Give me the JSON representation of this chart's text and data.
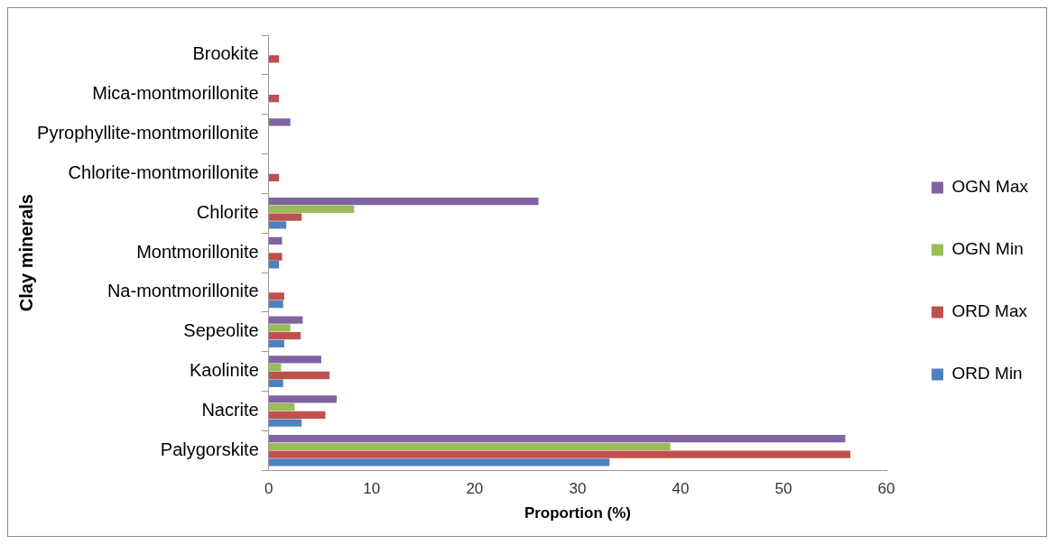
{
  "chart_data": {
    "type": "bar",
    "orientation": "horizontal",
    "xlabel": "Proportion (%)",
    "ylabel": "Clay minerals",
    "categories": [
      "Brookite",
      "Mica-montmorillonite",
      "Pyrophyllite-montmorillonite",
      "Chlorite-montmorillonite",
      "Chlorite",
      "Montmorillonite",
      "Na-montmorillonite",
      "Sepeolite",
      "Kaolinite",
      "Nacrite",
      "Palygorskite"
    ],
    "series": [
      {
        "name": "OGN Max",
        "color": "#8064a2",
        "values": [
          null,
          null,
          2.1,
          null,
          26.2,
          1.3,
          null,
          3.3,
          5.1,
          6.6,
          56.0
        ]
      },
      {
        "name": "OGN Min",
        "color": "#9bbb59",
        "values": [
          null,
          null,
          null,
          null,
          8.3,
          null,
          null,
          2.1,
          1.2,
          2.5,
          39.0
        ]
      },
      {
        "name": "ORD Max",
        "color": "#c0504d",
        "values": [
          1.0,
          1.0,
          null,
          1.0,
          3.2,
          1.3,
          1.5,
          3.1,
          5.9,
          5.5,
          56.5
        ]
      },
      {
        "name": "ORD Min",
        "color": "#4f81bd",
        "values": [
          null,
          null,
          null,
          null,
          1.7,
          1.0,
          1.4,
          1.5,
          1.4,
          3.2,
          33.1
        ]
      }
    ],
    "xlim": [
      0,
      60
    ],
    "xticks": [
      0,
      10,
      20,
      30,
      40,
      50,
      60
    ],
    "grid": false,
    "legend": "right"
  }
}
